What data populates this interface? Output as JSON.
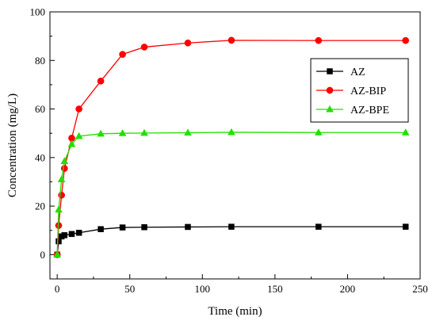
{
  "chart_data": {
    "type": "line",
    "xlabel": "Time (min)",
    "ylabel": "Concentration (mg/L)",
    "xlim": [
      -5,
      250
    ],
    "ylim": [
      -10,
      100
    ],
    "xticks": [
      0,
      50,
      100,
      150,
      200,
      250
    ],
    "yticks": [
      0,
      20,
      40,
      60,
      80,
      100
    ],
    "grid": false,
    "legend_position": "right",
    "series": [
      {
        "name": "AZ",
        "color": "#000000",
        "marker": "square",
        "x": [
          0,
          1,
          3,
          5,
          10,
          15,
          30,
          45,
          60,
          90,
          120,
          180,
          240
        ],
        "y": [
          0,
          5.5,
          7.5,
          8,
          8.5,
          9,
          10.5,
          11.2,
          11.3,
          11.4,
          11.5,
          11.5,
          11.5
        ]
      },
      {
        "name": "AZ-BIP",
        "color": "#ff0000",
        "marker": "circle",
        "x": [
          0,
          1,
          3,
          5,
          10,
          15,
          30,
          45,
          60,
          90,
          120,
          180,
          240
        ],
        "y": [
          0,
          12,
          24.5,
          35.5,
          48,
          60,
          71.5,
          82.5,
          85.5,
          87.2,
          88.3,
          88.2,
          88.2
        ]
      },
      {
        "name": "AZ-BPE",
        "color": "#22e000",
        "marker": "triangle",
        "x": [
          0,
          1,
          3,
          5,
          10,
          15,
          30,
          45,
          60,
          90,
          120,
          180,
          240
        ],
        "y": [
          0,
          18.5,
          31,
          38.5,
          45.5,
          48.8,
          49.8,
          50,
          50.1,
          50.2,
          50.4,
          50.3,
          50.3
        ]
      }
    ]
  }
}
